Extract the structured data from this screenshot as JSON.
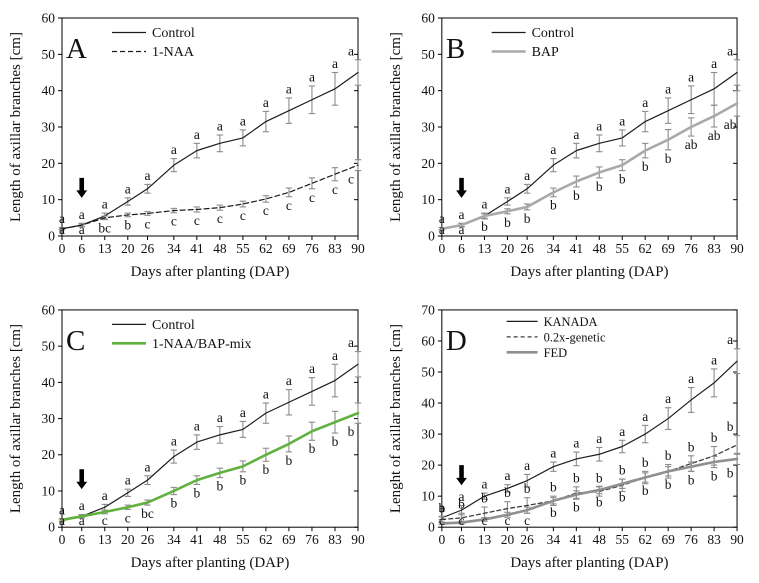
{
  "figure": {
    "background": "#ffffff",
    "axis_color": "#000000",
    "error_bar_color": "#8c8c8c",
    "text_color": "#111111"
  },
  "chart_data": [
    {
      "type": "line",
      "panel_label": "A",
      "xlabel": "Days after planting (DAP)",
      "ylabel": "Length of axillar branches [cm]",
      "x": [
        0,
        6,
        13,
        20,
        26,
        34,
        41,
        48,
        55,
        62,
        69,
        76,
        83,
        90
      ],
      "ylim": [
        0,
        60
      ],
      "ytick_step": 10,
      "grid": false,
      "legend_position": "top-left-inside",
      "arrow_annotation": {
        "x": 6,
        "y_top": 16,
        "y_tip": 10.5
      },
      "series": [
        {
          "name": "Control",
          "color": "#1c1c1c",
          "width": 1.2,
          "dash": "",
          "values": [
            2,
            3,
            5.5,
            9.5,
            13,
            19.5,
            23.5,
            25.5,
            27,
            31.5,
            34.5,
            37.5,
            40.5,
            45
          ],
          "errors": [
            0.3,
            0.5,
            0.8,
            1.0,
            1.2,
            1.8,
            2.0,
            2.3,
            2.2,
            2.8,
            3.5,
            3.8,
            4.5,
            3.5
          ],
          "letters": [
            "a",
            "a",
            "a",
            "a",
            "a",
            "a",
            "a",
            "a",
            "a",
            "a",
            "a",
            "a",
            "a",
            "a"
          ],
          "letters_side": "above"
        },
        {
          "name": "1-NAA",
          "color": "#1c1c1c",
          "width": 1.2,
          "dash": "5,3",
          "values": [
            2,
            3,
            5,
            5.8,
            6.2,
            7,
            7.3,
            7.8,
            8.8,
            10.2,
            12,
            14.5,
            17,
            19.5
          ],
          "errors": [
            0.2,
            0.3,
            0.5,
            0.5,
            0.5,
            0.6,
            0.7,
            0.7,
            0.8,
            0.9,
            1.2,
            1.5,
            1.8,
            1.5
          ],
          "letters": [
            "a",
            "a",
            "bc",
            "b",
            "c",
            "c",
            "c",
            "c",
            "c",
            "c",
            "c",
            "c",
            "c",
            "c"
          ],
          "letters_side": "below"
        }
      ]
    },
    {
      "type": "line",
      "panel_label": "B",
      "xlabel": "Days after planting (DAP)",
      "ylabel": "Length of axillar branches [cm]",
      "x": [
        0,
        6,
        13,
        20,
        26,
        34,
        41,
        48,
        55,
        62,
        69,
        76,
        83,
        90
      ],
      "ylim": [
        0,
        60
      ],
      "ytick_step": 10,
      "grid": false,
      "legend_position": "top-left-inside",
      "arrow_annotation": {
        "x": 6,
        "y_top": 16,
        "y_tip": 10.5
      },
      "series": [
        {
          "name": "Control",
          "color": "#1c1c1c",
          "width": 1.2,
          "dash": "",
          "values": [
            2,
            3,
            5.5,
            9.5,
            13,
            19.5,
            23.5,
            25.5,
            27,
            31.5,
            34.5,
            37.5,
            40.5,
            45
          ],
          "errors": [
            0.3,
            0.5,
            0.8,
            1.0,
            1.2,
            1.8,
            2.0,
            2.3,
            2.2,
            2.8,
            3.5,
            3.8,
            4.5,
            3.5
          ],
          "letters": [
            "a",
            "a",
            "a",
            "a",
            "a",
            "a",
            "a",
            "a",
            "a",
            "a",
            "a",
            "a",
            "a",
            "a"
          ],
          "letters_side": "above"
        },
        {
          "name": "BAP",
          "color": "#a9a9a9",
          "width": 2.6,
          "dash": "",
          "values": [
            2,
            3,
            5.5,
            6.8,
            8,
            12,
            15,
            17.5,
            19.5,
            23.5,
            26.5,
            30,
            33,
            36.5
          ],
          "errors": [
            0.3,
            0.4,
            0.6,
            0.7,
            0.8,
            1.2,
            1.5,
            1.5,
            1.5,
            2.0,
            2.8,
            2.5,
            3.0,
            3.5
          ],
          "letters": [
            "a",
            "a",
            "b",
            "b",
            "b",
            "b",
            "b",
            "b",
            "b",
            "b",
            "b",
            "ab",
            "ab",
            "ab"
          ],
          "letters_side": "below"
        }
      ]
    },
    {
      "type": "line",
      "panel_label": "C",
      "xlabel": "Days after planting (DAP)",
      "ylabel": "Length of axillar branches [cm]",
      "x": [
        0,
        6,
        13,
        20,
        26,
        34,
        41,
        48,
        55,
        62,
        69,
        76,
        83,
        90
      ],
      "ylim": [
        0,
        60
      ],
      "ytick_step": 10,
      "grid": false,
      "legend_position": "top-left-inside",
      "arrow_annotation": {
        "x": 6,
        "y_top": 16,
        "y_tip": 10.5
      },
      "series": [
        {
          "name": "Control",
          "color": "#1c1c1c",
          "width": 1.2,
          "dash": "",
          "values": [
            2,
            3,
            5.5,
            9.5,
            13,
            19.5,
            23.5,
            25.5,
            27,
            31.5,
            34.5,
            37.5,
            40.5,
            45
          ],
          "errors": [
            0.3,
            0.5,
            0.8,
            1.0,
            1.2,
            1.8,
            2.0,
            2.3,
            2.2,
            2.8,
            3.5,
            3.8,
            4.5,
            3.5
          ],
          "letters": [
            "a",
            "a",
            "a",
            "a",
            "a",
            "a",
            "a",
            "a",
            "a",
            "a",
            "a",
            "a",
            "a",
            "a"
          ],
          "letters_side": "above"
        },
        {
          "name": "1-NAA/BAP-mix",
          "color": "#61b13e",
          "width": 2.6,
          "dash": "",
          "values": [
            2,
            3,
            4.2,
            5.5,
            6.8,
            10,
            13,
            15,
            16.8,
            20,
            23,
            26.5,
            29,
            31.5
          ],
          "errors": [
            0.3,
            0.4,
            0.5,
            0.6,
            0.7,
            1.0,
            1.2,
            1.3,
            1.5,
            1.8,
            2.2,
            2.5,
            3.0,
            2.8
          ],
          "letters": [
            "a",
            "a",
            "c",
            "c",
            "bc",
            "b",
            "b",
            "b",
            "b",
            "b",
            "b",
            "b",
            "b",
            "b"
          ],
          "letters_side": "below"
        }
      ]
    },
    {
      "type": "line",
      "panel_label": "D",
      "xlabel": "Days after planting (DAP)",
      "ylabel": "Lenght of axillar branches [cm]",
      "x": [
        0,
        6,
        13,
        20,
        26,
        34,
        41,
        48,
        55,
        62,
        69,
        76,
        83,
        90
      ],
      "ylim": [
        0,
        70
      ],
      "ytick_step": 10,
      "grid": false,
      "legend_position": "top-left-inside",
      "arrow_annotation": {
        "x": 6,
        "y_top": 20,
        "y_tip": 13.5
      },
      "series": [
        {
          "name": "KANADA",
          "color": "#1c1c1c",
          "width": 1.2,
          "dash": "",
          "values": [
            3,
            5.5,
            10,
            12.5,
            15,
            19.5,
            22,
            23.5,
            26,
            30,
            35,
            41,
            46.5,
            53.5
          ],
          "errors": [
            0.5,
            1.5,
            1.0,
            1.2,
            2.0,
            1.5,
            2.2,
            2.2,
            2.0,
            2.8,
            3.5,
            4.0,
            4.5,
            4.0
          ],
          "letters": [
            "a",
            "a",
            "a",
            "a",
            "a",
            "a",
            "a",
            "a",
            "a",
            "a",
            "a",
            "a",
            "a",
            "a"
          ],
          "letters_side": "above"
        },
        {
          "name": "0.2x-genetic",
          "color": "#3d3d3d",
          "width": 1.3,
          "dash": "4,3",
          "values": [
            2.5,
            3,
            4.5,
            6,
            7,
            8.5,
            11,
            11.5,
            13.5,
            16,
            18,
            20.5,
            23,
            26.5
          ],
          "errors": [
            0.8,
            1.5,
            2.0,
            2.2,
            2.5,
            1.5,
            2.0,
            1.5,
            2.0,
            2.0,
            2.2,
            2.5,
            3.0,
            3.0
          ],
          "letters": [
            "b",
            "b",
            "b",
            "b",
            "b",
            "b",
            "b",
            "b",
            "b",
            "b",
            "b",
            "b",
            "b",
            "b"
          ],
          "letters_side": "above"
        },
        {
          "name": "FED",
          "color": "#8f8f8f",
          "width": 2.6,
          "dash": "",
          "values": [
            1.2,
            1.5,
            2.5,
            4,
            5.5,
            8.5,
            10.5,
            12,
            14,
            16,
            18,
            19.5,
            21,
            22
          ],
          "errors": [
            0.3,
            0.4,
            0.6,
            0.8,
            1.0,
            1.0,
            1.2,
            1.2,
            1.5,
            1.5,
            1.5,
            1.5,
            1.8,
            1.8
          ],
          "letters": [
            "c",
            "c",
            "c",
            "c",
            "c",
            "b",
            "b",
            "b",
            "b",
            "b",
            "b",
            "b",
            "b",
            "b"
          ],
          "letters_side": "below"
        }
      ]
    }
  ]
}
